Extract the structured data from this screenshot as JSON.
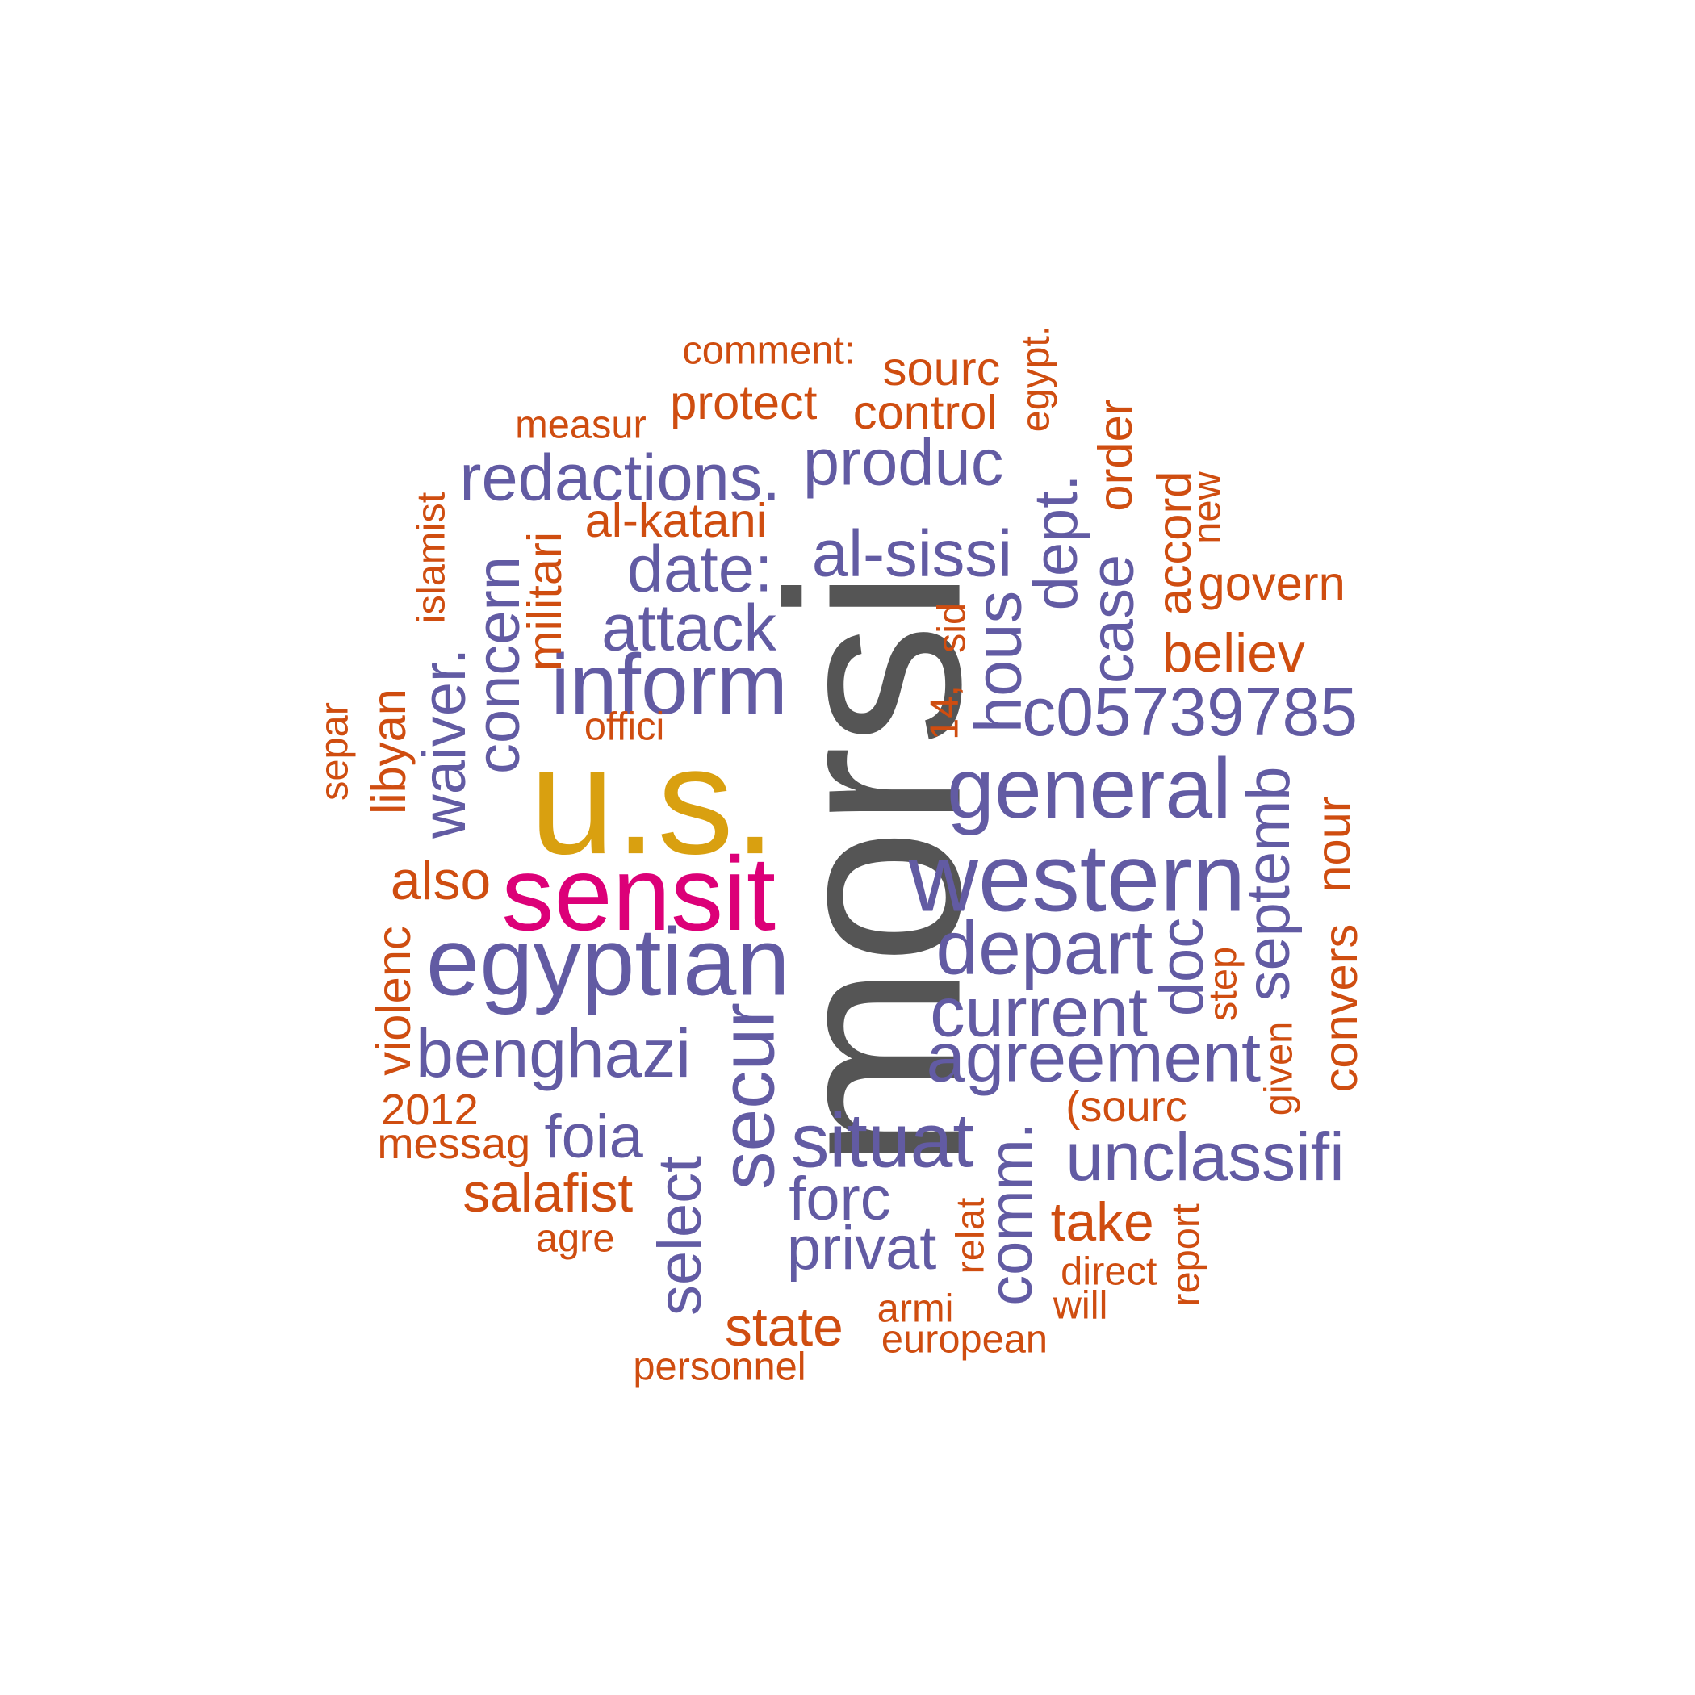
{
  "palette": {
    "grey": "#555555",
    "gold": "#d9a010",
    "pink": "#dc0078",
    "purple": "#625ba3",
    "orange": "#cf4d10"
  },
  "words": {
    "morsi": "morsi",
    "us": "u.s.",
    "sensit": "sensit",
    "egyptian": "egyptian",
    "western": "western",
    "inform": "inform",
    "general": "general",
    "depart": "depart",
    "secur": "secur",
    "situat": "situat",
    "agreement": "agreement",
    "current": "current",
    "benghazi": "benghazi",
    "unclassifi": "unclassifi",
    "c05739785": "c05739785",
    "redactions": "redactions.",
    "produc": "produc",
    "al_sissi": "al-sissi",
    "date": "date:",
    "attack": "attack",
    "hous": "hous",
    "dept": "dept.",
    "case": "case",
    "septemb": "septemb",
    "concern": "concern",
    "waiver": "waiver.",
    "doc": "doc",
    "foia": "foia",
    "forc": "forc",
    "privat": "privat",
    "comm": "comm.",
    "select": "select",
    "comment": "comment:",
    "sourc": "sourc",
    "protect": "protect",
    "control": "control",
    "measur": "measur",
    "egypt": "egypt.",
    "order": "order",
    "al_katani": "al-katani",
    "islamist": "islamist",
    "militari": "militari",
    "accord": "accord",
    "new": "new",
    "govern": "govern",
    "sid": "sid",
    "believ": "believ",
    "fourteen": "14,",
    "offici": "offici",
    "separ": "separ",
    "libyan": "libyan",
    "nour": "nour",
    "also": "also",
    "violenc": "violenc",
    "step": "step",
    "convers": "convers",
    "given": "given",
    "y2012": "2012",
    "sourc_paren": "(sourc",
    "messag": "messag",
    "salafist": "salafist",
    "take": "take",
    "relat": "relat",
    "report": "report",
    "agre": "agre",
    "direct": "direct",
    "will": "will",
    "armi": "armi",
    "state": "state",
    "european": "european",
    "personnel": "personnel"
  }
}
